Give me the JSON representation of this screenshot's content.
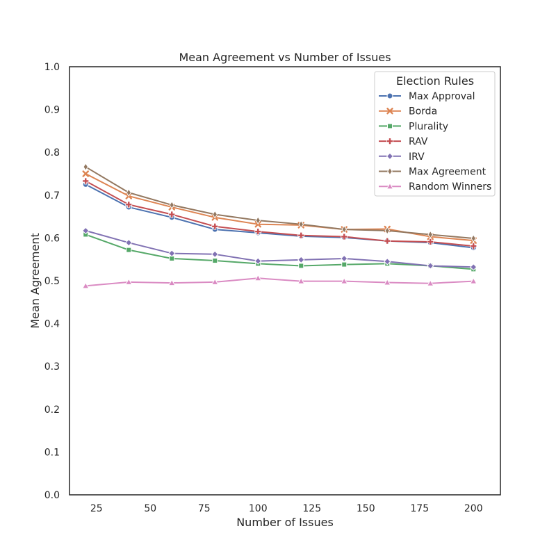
{
  "chart_data": {
    "type": "line",
    "title": "Mean Agreement vs Number of Issues",
    "xlabel": "Number of Issues",
    "ylabel": "Mean Agreement",
    "xlim": [
      12.5,
      212.5
    ],
    "ylim": [
      0.0,
      1.0
    ],
    "x_ticks": [
      25,
      50,
      75,
      100,
      125,
      150,
      175,
      200
    ],
    "y_ticks": [
      0.0,
      0.1,
      0.2,
      0.3,
      0.4,
      0.5,
      0.6,
      0.7,
      0.8,
      0.9,
      1.0
    ],
    "y_tick_labels": [
      "0.0",
      "0.1",
      "0.2",
      "0.3",
      "0.4",
      "0.5",
      "0.6",
      "0.7",
      "0.8",
      "0.9",
      "1.0"
    ],
    "x_tick_labels": [
      "25",
      "50",
      "75",
      "100",
      "125",
      "150",
      "175",
      "200"
    ],
    "grid": false,
    "legend": {
      "title": "Election Rules",
      "placement": "top-right"
    },
    "x": [
      20,
      40,
      60,
      80,
      100,
      120,
      140,
      160,
      180,
      200
    ],
    "series": [
      {
        "name": "Max Approval",
        "color": "#4c72b0",
        "marker": "circle",
        "values": [
          0.725,
          0.672,
          0.648,
          0.62,
          0.612,
          0.604,
          0.601,
          0.593,
          0.589,
          0.577
        ]
      },
      {
        "name": "Borda",
        "color": "#dd8452",
        "marker": "x",
        "values": [
          0.75,
          0.698,
          0.672,
          0.648,
          0.632,
          0.63,
          0.62,
          0.621,
          0.603,
          0.594
        ]
      },
      {
        "name": "Plurality",
        "color": "#55a868",
        "marker": "square",
        "values": [
          0.608,
          0.572,
          0.552,
          0.547,
          0.54,
          0.535,
          0.538,
          0.54,
          0.535,
          0.527
        ]
      },
      {
        "name": "RAV",
        "color": "#c44e52",
        "marker": "plus",
        "values": [
          0.733,
          0.678,
          0.655,
          0.627,
          0.615,
          0.606,
          0.603,
          0.593,
          0.591,
          0.581
        ]
      },
      {
        "name": "IRV",
        "color": "#8172b3",
        "marker": "diamond",
        "values": [
          0.617,
          0.589,
          0.564,
          0.562,
          0.546,
          0.549,
          0.552,
          0.545,
          0.535,
          0.532
        ]
      },
      {
        "name": "Max Agreement",
        "color": "#937860",
        "marker": "thin_diamond",
        "values": [
          0.766,
          0.706,
          0.677,
          0.655,
          0.641,
          0.632,
          0.62,
          0.617,
          0.608,
          0.599
        ]
      },
      {
        "name": "Random Winners",
        "color": "#da8bc3",
        "marker": "triangle",
        "values": [
          0.488,
          0.497,
          0.495,
          0.497,
          0.506,
          0.499,
          0.499,
          0.496,
          0.494,
          0.499
        ]
      }
    ]
  }
}
